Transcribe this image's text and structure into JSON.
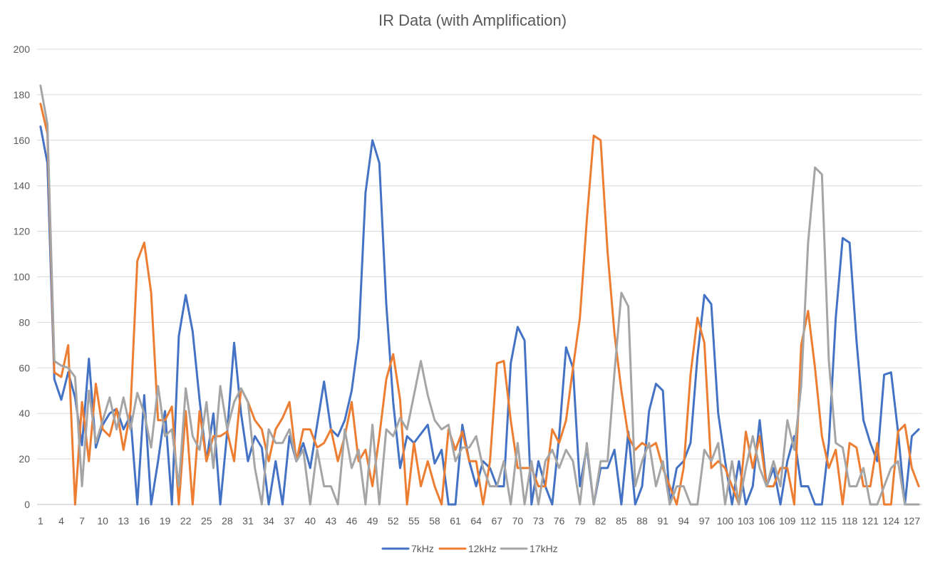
{
  "chart_data": {
    "type": "line",
    "title": "IR Data (with Amplification)",
    "xlabel": "",
    "ylabel": "",
    "ylim": [
      0,
      200
    ],
    "yticks": [
      0,
      20,
      40,
      60,
      80,
      100,
      120,
      140,
      160,
      180,
      200
    ],
    "x_start": 1,
    "x_end": 128,
    "x_tick_labels": [
      1,
      4,
      7,
      10,
      13,
      16,
      19,
      22,
      25,
      28,
      31,
      34,
      37,
      40,
      43,
      46,
      49,
      52,
      55,
      58,
      61,
      64,
      67,
      70,
      73,
      76,
      79,
      82,
      85,
      88,
      91,
      94,
      97,
      100,
      103,
      106,
      109,
      112,
      115,
      118,
      121,
      124,
      127
    ],
    "grid": true,
    "legend_position": "bottom",
    "series": [
      {
        "name": "7kHz",
        "color": "#4472c4",
        "values": [
          166,
          150,
          55,
          46,
          58,
          47,
          26,
          64,
          25,
          35,
          40,
          42,
          33,
          39,
          0,
          48,
          0,
          19,
          41,
          0,
          74,
          92,
          76,
          46,
          19,
          40,
          0,
          32,
          71,
          40,
          19,
          30,
          25,
          0,
          19,
          0,
          30,
          19,
          27,
          16,
          35,
          54,
          33,
          30,
          37,
          50,
          73,
          137,
          160,
          150,
          88,
          45,
          16,
          30,
          27,
          31,
          35,
          18,
          24,
          0,
          0,
          35,
          19,
          8,
          19,
          16,
          8,
          8,
          62,
          78,
          72,
          0,
          19,
          8,
          0,
          30,
          69,
          60,
          8,
          25,
          0,
          16,
          16,
          24,
          0,
          32,
          0,
          8,
          41,
          53,
          50,
          0,
          16,
          19,
          27,
          65,
          92,
          88,
          40,
          19,
          0,
          19,
          0,
          8,
          37,
          8,
          16,
          0,
          19,
          30,
          8,
          8,
          0,
          0,
          27,
          82,
          117,
          115,
          72,
          37,
          27,
          19,
          57,
          58,
          32,
          0,
          30,
          33
        ]
      },
      {
        "name": "12kHz",
        "color": "#ed7d31",
        "values": [
          176,
          163,
          58,
          56,
          70,
          0,
          45,
          19,
          53,
          33,
          30,
          42,
          24,
          41,
          107,
          115,
          93,
          37,
          37,
          43,
          0,
          41,
          0,
          41,
          19,
          30,
          30,
          32,
          19,
          51,
          45,
          37,
          33,
          19,
          33,
          38,
          45,
          19,
          33,
          33,
          25,
          27,
          33,
          19,
          30,
          45,
          19,
          24,
          8,
          30,
          55,
          66,
          46,
          0,
          27,
          8,
          19,
          8,
          0,
          33,
          24,
          32,
          19,
          19,
          0,
          19,
          62,
          63,
          37,
          16,
          16,
          16,
          8,
          8,
          33,
          27,
          37,
          60,
          82,
          125,
          162,
          160,
          111,
          75,
          50,
          30,
          24,
          27,
          25,
          27,
          16,
          8,
          0,
          16,
          57,
          82,
          71,
          16,
          19,
          16,
          8,
          0,
          32,
          16,
          30,
          8,
          8,
          16,
          16,
          0,
          70,
          85,
          60,
          30,
          16,
          24,
          0,
          27,
          25,
          8,
          8,
          27,
          0,
          0,
          32,
          35,
          16,
          8
        ]
      },
      {
        "name": "17kHz",
        "color": "#a5a5a5",
        "values": [
          184,
          167,
          63,
          61,
          60,
          56,
          8,
          50,
          27,
          37,
          47,
          33,
          47,
          33,
          49,
          40,
          25,
          52,
          30,
          33,
          8,
          51,
          30,
          24,
          45,
          16,
          52,
          33,
          45,
          51,
          45,
          16,
          0,
          33,
          27,
          27,
          33,
          19,
          24,
          0,
          24,
          8,
          8,
          0,
          33,
          16,
          24,
          0,
          35,
          0,
          33,
          30,
          38,
          33,
          48,
          63,
          48,
          37,
          33,
          35,
          19,
          25,
          25,
          30,
          16,
          8,
          8,
          19,
          0,
          27,
          0,
          19,
          0,
          19,
          24,
          16,
          24,
          19,
          0,
          27,
          0,
          19,
          19,
          58,
          93,
          87,
          8,
          19,
          27,
          8,
          19,
          0,
          8,
          8,
          0,
          0,
          24,
          19,
          27,
          0,
          19,
          0,
          16,
          30,
          16,
          8,
          19,
          8,
          37,
          24,
          52,
          115,
          148,
          145,
          63,
          27,
          25,
          8,
          8,
          16,
          0,
          0,
          8,
          16,
          19,
          0,
          0,
          0
        ]
      }
    ]
  }
}
